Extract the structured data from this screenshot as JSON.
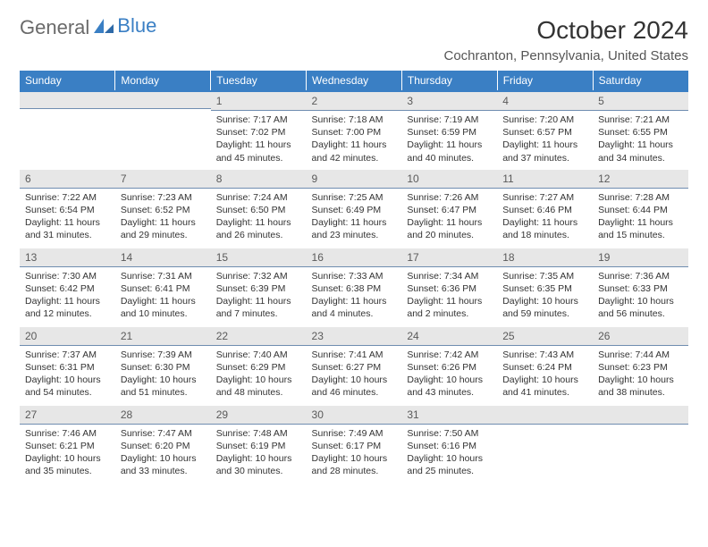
{
  "brand": {
    "text1": "General",
    "text2": "Blue"
  },
  "title": "October 2024",
  "location": "Cochranton, Pennsylvania, United States",
  "colors": {
    "header_bg": "#3a7fc4",
    "header_text": "#ffffff",
    "daybar_bg": "#e7e7e7",
    "daybar_border": "#6f8db0",
    "body_bg": "#ffffff",
    "text": "#333333"
  },
  "weekdays": [
    "Sunday",
    "Monday",
    "Tuesday",
    "Wednesday",
    "Thursday",
    "Friday",
    "Saturday"
  ],
  "weeks": [
    [
      {
        "day": "",
        "lines": [
          "",
          "",
          "",
          ""
        ]
      },
      {
        "day": "",
        "lines": [
          "",
          "",
          "",
          ""
        ]
      },
      {
        "day": "1",
        "lines": [
          "Sunrise: 7:17 AM",
          "Sunset: 7:02 PM",
          "Daylight: 11 hours",
          "and 45 minutes."
        ]
      },
      {
        "day": "2",
        "lines": [
          "Sunrise: 7:18 AM",
          "Sunset: 7:00 PM",
          "Daylight: 11 hours",
          "and 42 minutes."
        ]
      },
      {
        "day": "3",
        "lines": [
          "Sunrise: 7:19 AM",
          "Sunset: 6:59 PM",
          "Daylight: 11 hours",
          "and 40 minutes."
        ]
      },
      {
        "day": "4",
        "lines": [
          "Sunrise: 7:20 AM",
          "Sunset: 6:57 PM",
          "Daylight: 11 hours",
          "and 37 minutes."
        ]
      },
      {
        "day": "5",
        "lines": [
          "Sunrise: 7:21 AM",
          "Sunset: 6:55 PM",
          "Daylight: 11 hours",
          "and 34 minutes."
        ]
      }
    ],
    [
      {
        "day": "6",
        "lines": [
          "Sunrise: 7:22 AM",
          "Sunset: 6:54 PM",
          "Daylight: 11 hours",
          "and 31 minutes."
        ]
      },
      {
        "day": "7",
        "lines": [
          "Sunrise: 7:23 AM",
          "Sunset: 6:52 PM",
          "Daylight: 11 hours",
          "and 29 minutes."
        ]
      },
      {
        "day": "8",
        "lines": [
          "Sunrise: 7:24 AM",
          "Sunset: 6:50 PM",
          "Daylight: 11 hours",
          "and 26 minutes."
        ]
      },
      {
        "day": "9",
        "lines": [
          "Sunrise: 7:25 AM",
          "Sunset: 6:49 PM",
          "Daylight: 11 hours",
          "and 23 minutes."
        ]
      },
      {
        "day": "10",
        "lines": [
          "Sunrise: 7:26 AM",
          "Sunset: 6:47 PM",
          "Daylight: 11 hours",
          "and 20 minutes."
        ]
      },
      {
        "day": "11",
        "lines": [
          "Sunrise: 7:27 AM",
          "Sunset: 6:46 PM",
          "Daylight: 11 hours",
          "and 18 minutes."
        ]
      },
      {
        "day": "12",
        "lines": [
          "Sunrise: 7:28 AM",
          "Sunset: 6:44 PM",
          "Daylight: 11 hours",
          "and 15 minutes."
        ]
      }
    ],
    [
      {
        "day": "13",
        "lines": [
          "Sunrise: 7:30 AM",
          "Sunset: 6:42 PM",
          "Daylight: 11 hours",
          "and 12 minutes."
        ]
      },
      {
        "day": "14",
        "lines": [
          "Sunrise: 7:31 AM",
          "Sunset: 6:41 PM",
          "Daylight: 11 hours",
          "and 10 minutes."
        ]
      },
      {
        "day": "15",
        "lines": [
          "Sunrise: 7:32 AM",
          "Sunset: 6:39 PM",
          "Daylight: 11 hours",
          "and 7 minutes."
        ]
      },
      {
        "day": "16",
        "lines": [
          "Sunrise: 7:33 AM",
          "Sunset: 6:38 PM",
          "Daylight: 11 hours",
          "and 4 minutes."
        ]
      },
      {
        "day": "17",
        "lines": [
          "Sunrise: 7:34 AM",
          "Sunset: 6:36 PM",
          "Daylight: 11 hours",
          "and 2 minutes."
        ]
      },
      {
        "day": "18",
        "lines": [
          "Sunrise: 7:35 AM",
          "Sunset: 6:35 PM",
          "Daylight: 10 hours",
          "and 59 minutes."
        ]
      },
      {
        "day": "19",
        "lines": [
          "Sunrise: 7:36 AM",
          "Sunset: 6:33 PM",
          "Daylight: 10 hours",
          "and 56 minutes."
        ]
      }
    ],
    [
      {
        "day": "20",
        "lines": [
          "Sunrise: 7:37 AM",
          "Sunset: 6:31 PM",
          "Daylight: 10 hours",
          "and 54 minutes."
        ]
      },
      {
        "day": "21",
        "lines": [
          "Sunrise: 7:39 AM",
          "Sunset: 6:30 PM",
          "Daylight: 10 hours",
          "and 51 minutes."
        ]
      },
      {
        "day": "22",
        "lines": [
          "Sunrise: 7:40 AM",
          "Sunset: 6:29 PM",
          "Daylight: 10 hours",
          "and 48 minutes."
        ]
      },
      {
        "day": "23",
        "lines": [
          "Sunrise: 7:41 AM",
          "Sunset: 6:27 PM",
          "Daylight: 10 hours",
          "and 46 minutes."
        ]
      },
      {
        "day": "24",
        "lines": [
          "Sunrise: 7:42 AM",
          "Sunset: 6:26 PM",
          "Daylight: 10 hours",
          "and 43 minutes."
        ]
      },
      {
        "day": "25",
        "lines": [
          "Sunrise: 7:43 AM",
          "Sunset: 6:24 PM",
          "Daylight: 10 hours",
          "and 41 minutes."
        ]
      },
      {
        "day": "26",
        "lines": [
          "Sunrise: 7:44 AM",
          "Sunset: 6:23 PM",
          "Daylight: 10 hours",
          "and 38 minutes."
        ]
      }
    ],
    [
      {
        "day": "27",
        "lines": [
          "Sunrise: 7:46 AM",
          "Sunset: 6:21 PM",
          "Daylight: 10 hours",
          "and 35 minutes."
        ]
      },
      {
        "day": "28",
        "lines": [
          "Sunrise: 7:47 AM",
          "Sunset: 6:20 PM",
          "Daylight: 10 hours",
          "and 33 minutes."
        ]
      },
      {
        "day": "29",
        "lines": [
          "Sunrise: 7:48 AM",
          "Sunset: 6:19 PM",
          "Daylight: 10 hours",
          "and 30 minutes."
        ]
      },
      {
        "day": "30",
        "lines": [
          "Sunrise: 7:49 AM",
          "Sunset: 6:17 PM",
          "Daylight: 10 hours",
          "and 28 minutes."
        ]
      },
      {
        "day": "31",
        "lines": [
          "Sunrise: 7:50 AM",
          "Sunset: 6:16 PM",
          "Daylight: 10 hours",
          "and 25 minutes."
        ]
      },
      {
        "day": "",
        "lines": [
          "",
          "",
          "",
          ""
        ]
      },
      {
        "day": "",
        "lines": [
          "",
          "",
          "",
          ""
        ]
      }
    ]
  ]
}
